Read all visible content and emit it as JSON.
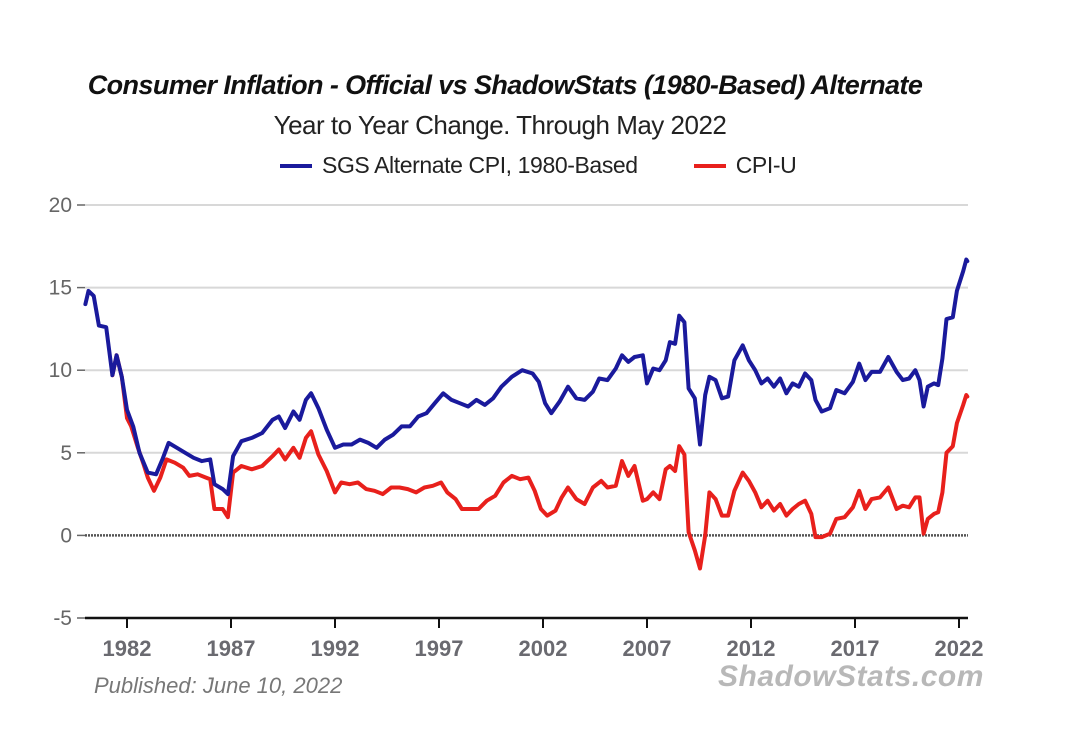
{
  "chart_data": {
    "type": "line",
    "title": "Consumer Inflation - Official vs ShadowStats (1980-Based) Alternate",
    "subtitle": "Year to Year Change. Through May 2022",
    "xlabel": "",
    "ylabel": "",
    "ylim": [
      -5,
      20
    ],
    "xlim": [
      1980,
      2022.4
    ],
    "yticks": [
      20,
      15,
      10,
      5,
      0,
      -5
    ],
    "xticks": [
      1982,
      1987,
      1992,
      1997,
      2002,
      2007,
      2012,
      2017,
      2022
    ],
    "grid": true,
    "legend_position": "top-center",
    "series": [
      {
        "name": "SGS Alternate CPI, 1980-Based",
        "color": "#1a1a9c",
        "points": [
          [
            1980.0,
            14.0
          ],
          [
            1980.15,
            14.8
          ],
          [
            1980.4,
            14.5
          ],
          [
            1980.65,
            12.7
          ],
          [
            1981.0,
            12.6
          ],
          [
            1981.3,
            9.7
          ],
          [
            1981.5,
            10.9
          ],
          [
            1981.75,
            9.6
          ],
          [
            1982.0,
            7.6
          ],
          [
            1982.3,
            6.6
          ],
          [
            1982.6,
            5.0
          ],
          [
            1983.0,
            3.8
          ],
          [
            1983.4,
            3.7
          ],
          [
            1983.7,
            4.6
          ],
          [
            1984.0,
            5.6
          ],
          [
            1984.4,
            5.3
          ],
          [
            1984.8,
            5.0
          ],
          [
            1985.2,
            4.7
          ],
          [
            1985.6,
            4.5
          ],
          [
            1986.0,
            4.6
          ],
          [
            1986.2,
            3.1
          ],
          [
            1986.6,
            2.8
          ],
          [
            1986.85,
            2.5
          ],
          [
            1987.1,
            4.8
          ],
          [
            1987.5,
            5.7
          ],
          [
            1988.0,
            5.9
          ],
          [
            1988.5,
            6.2
          ],
          [
            1989.0,
            7.0
          ],
          [
            1989.3,
            7.2
          ],
          [
            1989.6,
            6.5
          ],
          [
            1990.0,
            7.5
          ],
          [
            1990.3,
            7.0
          ],
          [
            1990.6,
            8.2
          ],
          [
            1990.85,
            8.6
          ],
          [
            1991.2,
            7.7
          ],
          [
            1991.6,
            6.4
          ],
          [
            1992.0,
            5.3
          ],
          [
            1992.4,
            5.5
          ],
          [
            1992.8,
            5.5
          ],
          [
            1993.2,
            5.8
          ],
          [
            1993.6,
            5.6
          ],
          [
            1994.0,
            5.3
          ],
          [
            1994.4,
            5.8
          ],
          [
            1994.8,
            6.1
          ],
          [
            1995.2,
            6.6
          ],
          [
            1995.6,
            6.6
          ],
          [
            1996.0,
            7.2
          ],
          [
            1996.4,
            7.4
          ],
          [
            1996.8,
            8.0
          ],
          [
            1997.2,
            8.6
          ],
          [
            1997.6,
            8.2
          ],
          [
            1998.0,
            8.0
          ],
          [
            1998.4,
            7.8
          ],
          [
            1998.8,
            8.2
          ],
          [
            1999.2,
            7.9
          ],
          [
            1999.6,
            8.3
          ],
          [
            2000.0,
            9.0
          ],
          [
            2000.5,
            9.6
          ],
          [
            2001.0,
            10.0
          ],
          [
            2001.5,
            9.8
          ],
          [
            2001.8,
            9.3
          ],
          [
            2002.1,
            8.0
          ],
          [
            2002.4,
            7.4
          ],
          [
            2002.8,
            8.1
          ],
          [
            2003.2,
            9.0
          ],
          [
            2003.6,
            8.3
          ],
          [
            2004.0,
            8.2
          ],
          [
            2004.4,
            8.7
          ],
          [
            2004.7,
            9.5
          ],
          [
            2005.1,
            9.4
          ],
          [
            2005.5,
            10.1
          ],
          [
            2005.8,
            10.9
          ],
          [
            2006.1,
            10.5
          ],
          [
            2006.4,
            10.8
          ],
          [
            2006.8,
            10.9
          ],
          [
            2007.0,
            9.2
          ],
          [
            2007.3,
            10.1
          ],
          [
            2007.6,
            10.0
          ],
          [
            2007.9,
            10.6
          ],
          [
            2008.1,
            11.7
          ],
          [
            2008.35,
            11.6
          ],
          [
            2008.55,
            13.3
          ],
          [
            2008.8,
            12.9
          ],
          [
            2009.0,
            8.9
          ],
          [
            2009.3,
            8.3
          ],
          [
            2009.55,
            5.5
          ],
          [
            2009.8,
            8.5
          ],
          [
            2010.0,
            9.6
          ],
          [
            2010.3,
            9.4
          ],
          [
            2010.6,
            8.3
          ],
          [
            2010.9,
            8.4
          ],
          [
            2011.2,
            10.6
          ],
          [
            2011.6,
            11.5
          ],
          [
            2011.9,
            10.6
          ],
          [
            2012.2,
            10.0
          ],
          [
            2012.5,
            9.2
          ],
          [
            2012.8,
            9.5
          ],
          [
            2013.1,
            9.0
          ],
          [
            2013.4,
            9.5
          ],
          [
            2013.7,
            8.6
          ],
          [
            2014.0,
            9.2
          ],
          [
            2014.3,
            9.0
          ],
          [
            2014.6,
            9.8
          ],
          [
            2014.9,
            9.4
          ],
          [
            2015.1,
            8.2
          ],
          [
            2015.4,
            7.5
          ],
          [
            2015.8,
            7.7
          ],
          [
            2016.1,
            8.8
          ],
          [
            2016.5,
            8.6
          ],
          [
            2016.9,
            9.3
          ],
          [
            2017.2,
            10.4
          ],
          [
            2017.5,
            9.4
          ],
          [
            2017.8,
            9.9
          ],
          [
            2018.2,
            9.9
          ],
          [
            2018.6,
            10.8
          ],
          [
            2019.0,
            9.9
          ],
          [
            2019.3,
            9.4
          ],
          [
            2019.6,
            9.5
          ],
          [
            2019.9,
            10.0
          ],
          [
            2020.1,
            9.4
          ],
          [
            2020.3,
            7.8
          ],
          [
            2020.5,
            9.0
          ],
          [
            2020.8,
            9.2
          ],
          [
            2021.0,
            9.1
          ],
          [
            2021.2,
            10.7
          ],
          [
            2021.4,
            13.1
          ],
          [
            2021.7,
            13.2
          ],
          [
            2021.9,
            14.8
          ],
          [
            2022.2,
            16.0
          ],
          [
            2022.35,
            16.7
          ],
          [
            2022.4,
            16.6
          ]
        ]
      },
      {
        "name": "CPI-U",
        "color": "#e8201c",
        "points": [
          [
            1981.3,
            9.7
          ],
          [
            1981.5,
            10.9
          ],
          [
            1981.75,
            9.6
          ],
          [
            1982.0,
            7.1
          ],
          [
            1982.2,
            6.6
          ],
          [
            1982.5,
            5.4
          ],
          [
            1982.8,
            4.3
          ],
          [
            1983.0,
            3.5
          ],
          [
            1983.3,
            2.7
          ],
          [
            1983.6,
            3.5
          ],
          [
            1983.9,
            4.6
          ],
          [
            1984.3,
            4.4
          ],
          [
            1984.7,
            4.1
          ],
          [
            1985.0,
            3.6
          ],
          [
            1985.4,
            3.7
          ],
          [
            1985.8,
            3.5
          ],
          [
            1986.0,
            3.4
          ],
          [
            1986.2,
            1.6
          ],
          [
            1986.6,
            1.6
          ],
          [
            1986.85,
            1.1
          ],
          [
            1987.1,
            3.8
          ],
          [
            1987.5,
            4.2
          ],
          [
            1988.0,
            4.0
          ],
          [
            1988.5,
            4.2
          ],
          [
            1989.0,
            4.8
          ],
          [
            1989.3,
            5.2
          ],
          [
            1989.6,
            4.6
          ],
          [
            1990.0,
            5.3
          ],
          [
            1990.3,
            4.7
          ],
          [
            1990.6,
            5.9
          ],
          [
            1990.85,
            6.3
          ],
          [
            1991.2,
            4.9
          ],
          [
            1991.6,
            3.9
          ],
          [
            1992.0,
            2.6
          ],
          [
            1992.3,
            3.2
          ],
          [
            1992.7,
            3.1
          ],
          [
            1993.1,
            3.2
          ],
          [
            1993.5,
            2.8
          ],
          [
            1993.9,
            2.7
          ],
          [
            1994.3,
            2.5
          ],
          [
            1994.7,
            2.9
          ],
          [
            1995.1,
            2.9
          ],
          [
            1995.5,
            2.8
          ],
          [
            1995.9,
            2.6
          ],
          [
            1996.3,
            2.9
          ],
          [
            1996.7,
            3.0
          ],
          [
            1997.1,
            3.2
          ],
          [
            1997.4,
            2.6
          ],
          [
            1997.8,
            2.2
          ],
          [
            1998.1,
            1.6
          ],
          [
            1998.5,
            1.6
          ],
          [
            1998.9,
            1.6
          ],
          [
            1999.3,
            2.1
          ],
          [
            1999.7,
            2.4
          ],
          [
            2000.1,
            3.2
          ],
          [
            2000.5,
            3.6
          ],
          [
            2000.9,
            3.4
          ],
          [
            2001.3,
            3.5
          ],
          [
            2001.6,
            2.7
          ],
          [
            2001.9,
            1.6
          ],
          [
            2002.2,
            1.2
          ],
          [
            2002.6,
            1.5
          ],
          [
            2002.9,
            2.3
          ],
          [
            2003.2,
            2.9
          ],
          [
            2003.6,
            2.2
          ],
          [
            2004.0,
            1.9
          ],
          [
            2004.4,
            2.9
          ],
          [
            2004.8,
            3.3
          ],
          [
            2005.1,
            2.9
          ],
          [
            2005.5,
            3.0
          ],
          [
            2005.8,
            4.5
          ],
          [
            2006.1,
            3.6
          ],
          [
            2006.4,
            4.2
          ],
          [
            2006.8,
            2.1
          ],
          [
            2007.0,
            2.2
          ],
          [
            2007.3,
            2.6
          ],
          [
            2007.6,
            2.2
          ],
          [
            2007.9,
            4.0
          ],
          [
            2008.1,
            4.2
          ],
          [
            2008.35,
            3.9
          ],
          [
            2008.55,
            5.4
          ],
          [
            2008.8,
            4.9
          ],
          [
            2009.0,
            0.2
          ],
          [
            2009.3,
            -0.9
          ],
          [
            2009.55,
            -2.0
          ],
          [
            2009.8,
            0.0
          ],
          [
            2010.0,
            2.6
          ],
          [
            2010.3,
            2.2
          ],
          [
            2010.6,
            1.2
          ],
          [
            2010.9,
            1.2
          ],
          [
            2011.2,
            2.7
          ],
          [
            2011.6,
            3.8
          ],
          [
            2011.9,
            3.3
          ],
          [
            2012.2,
            2.6
          ],
          [
            2012.5,
            1.7
          ],
          [
            2012.8,
            2.1
          ],
          [
            2013.1,
            1.5
          ],
          [
            2013.4,
            1.9
          ],
          [
            2013.7,
            1.2
          ],
          [
            2014.0,
            1.6
          ],
          [
            2014.3,
            1.9
          ],
          [
            2014.6,
            2.1
          ],
          [
            2014.9,
            1.3
          ],
          [
            2015.1,
            -0.1
          ],
          [
            2015.4,
            -0.1
          ],
          [
            2015.8,
            0.1
          ],
          [
            2016.1,
            1.0
          ],
          [
            2016.5,
            1.1
          ],
          [
            2016.9,
            1.7
          ],
          [
            2017.2,
            2.7
          ],
          [
            2017.5,
            1.6
          ],
          [
            2017.8,
            2.2
          ],
          [
            2018.2,
            2.3
          ],
          [
            2018.6,
            2.9
          ],
          [
            2019.0,
            1.6
          ],
          [
            2019.3,
            1.8
          ],
          [
            2019.6,
            1.7
          ],
          [
            2019.9,
            2.3
          ],
          [
            2020.1,
            2.3
          ],
          [
            2020.3,
            0.1
          ],
          [
            2020.5,
            1.0
          ],
          [
            2020.8,
            1.3
          ],
          [
            2021.0,
            1.4
          ],
          [
            2021.2,
            2.6
          ],
          [
            2021.4,
            5.0
          ],
          [
            2021.7,
            5.4
          ],
          [
            2021.9,
            6.8
          ],
          [
            2022.2,
            7.9
          ],
          [
            2022.35,
            8.5
          ],
          [
            2022.4,
            8.4
          ]
        ]
      }
    ],
    "annotations": [
      "Published: June 10, 2022",
      "ShadowStats.com"
    ]
  },
  "title": "Consumer Inflation - Official vs ShadowStats (1980-Based) Alternate",
  "subtitle": "Year to Year Change. Through May 2022",
  "legend": [
    {
      "label": "SGS Alternate CPI, 1980-Based",
      "color": "#1a1a9c"
    },
    {
      "label": "CPI-U",
      "color": "#e8201c"
    }
  ],
  "footer": {
    "published": "Published: June 10, 2022",
    "brand": "ShadowStats.com"
  }
}
